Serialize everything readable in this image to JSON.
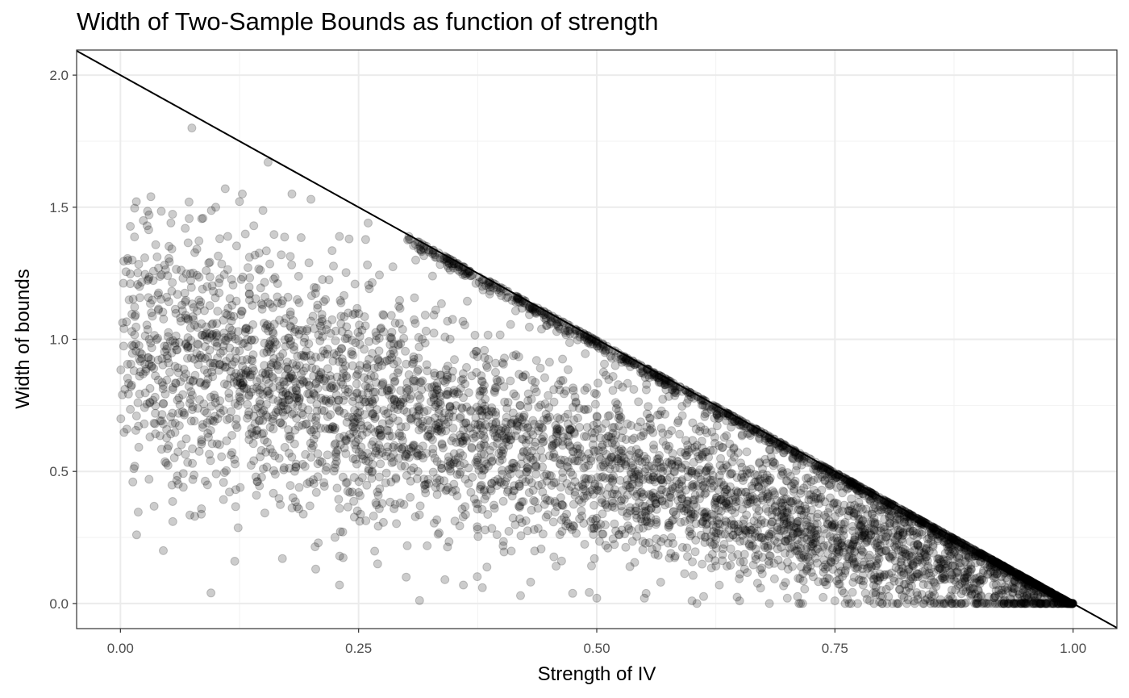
{
  "chart_data": {
    "type": "scatter",
    "title": "Width of Two-Sample Bounds as function of strength",
    "xlabel": "Strength of IV",
    "ylabel": "Width of bounds",
    "xlim": [
      -0.046,
      1.046
    ],
    "ylim": [
      -0.095,
      2.095
    ],
    "x_ticks": [
      0.0,
      0.25,
      0.5,
      0.75,
      1.0
    ],
    "x_tick_labels": [
      "0.00",
      "0.25",
      "0.50",
      "0.75",
      "1.00"
    ],
    "y_ticks": [
      0.0,
      0.5,
      1.0,
      1.5,
      2.0
    ],
    "y_tick_labels": [
      "0.0",
      "0.5",
      "1.0",
      "1.5",
      "2.0"
    ],
    "grid": true,
    "legend": "none",
    "point_color": "#000000",
    "point_opacity": 0.2,
    "reference_line": {
      "slope": -2,
      "intercept": 2,
      "color": "#000000"
    },
    "series": [
      {
        "values": [
          [
            0.002,
            0.79
          ],
          [
            0.012,
            1.03
          ],
          [
            0.013,
            0.46
          ],
          [
            0.015,
            0.52
          ],
          [
            0.017,
            0.26
          ],
          [
            0.02,
            1.2
          ],
          [
            0.025,
            0.68
          ],
          [
            0.028,
            1.43
          ],
          [
            0.03,
            0.47
          ],
          [
            0.032,
            1.54
          ],
          [
            0.035,
            0.89
          ],
          [
            0.04,
            1.27
          ],
          [
            0.045,
            0.2
          ],
          [
            0.05,
            1.01
          ],
          [
            0.055,
            0.31
          ],
          [
            0.06,
            1.17
          ],
          [
            0.063,
            0.84
          ],
          [
            0.066,
            0.44
          ],
          [
            0.068,
            1.42
          ],
          [
            0.072,
            1.52
          ],
          [
            0.075,
            1.8
          ],
          [
            0.078,
            0.33
          ],
          [
            0.082,
            0.98
          ],
          [
            0.085,
            0.62
          ],
          [
            0.09,
            1.26
          ],
          [
            0.095,
            0.04
          ],
          [
            0.1,
            1.5
          ],
          [
            0.105,
            0.72
          ],
          [
            0.11,
            1.57
          ],
          [
            0.115,
            0.93
          ],
          [
            0.12,
            0.16
          ],
          [
            0.128,
            1.55
          ],
          [
            0.135,
            0.79
          ],
          [
            0.14,
            1.43
          ],
          [
            0.15,
            0.51
          ],
          [
            0.155,
            1.67
          ],
          [
            0.16,
            1.12
          ],
          [
            0.165,
            0.9
          ],
          [
            0.17,
            0.17
          ],
          [
            0.18,
            1.55
          ],
          [
            0.19,
            0.72
          ],
          [
            0.2,
            1.53
          ],
          [
            0.205,
            0.13
          ],
          [
            0.21,
            1.05
          ],
          [
            0.22,
            0.66
          ],
          [
            0.23,
            0.07
          ],
          [
            0.24,
            1.38
          ],
          [
            0.25,
            0.42
          ],
          [
            0.26,
            1.44
          ],
          [
            0.27,
            0.15
          ],
          [
            0.28,
            0.92
          ],
          [
            0.3,
            0.1
          ],
          [
            0.31,
            1.3
          ],
          [
            0.33,
            0.55
          ],
          [
            0.36,
            0.07
          ],
          [
            0.38,
            0.06
          ],
          [
            0.42,
            0.03
          ],
          [
            0.5,
            0.02
          ],
          [
            0.55,
            0.02
          ],
          [
            0.6,
            0.01
          ],
          [
            0.65,
            0.01
          ],
          [
            0.7,
            0.02
          ],
          [
            0.75,
            0.01
          ],
          [
            0.8,
            0.0
          ],
          [
            0.85,
            0.01
          ],
          [
            0.9,
            0.02
          ],
          [
            0.95,
            0.02
          ],
          [
            0.99,
            0.015
          ]
        ]
      }
    ]
  }
}
